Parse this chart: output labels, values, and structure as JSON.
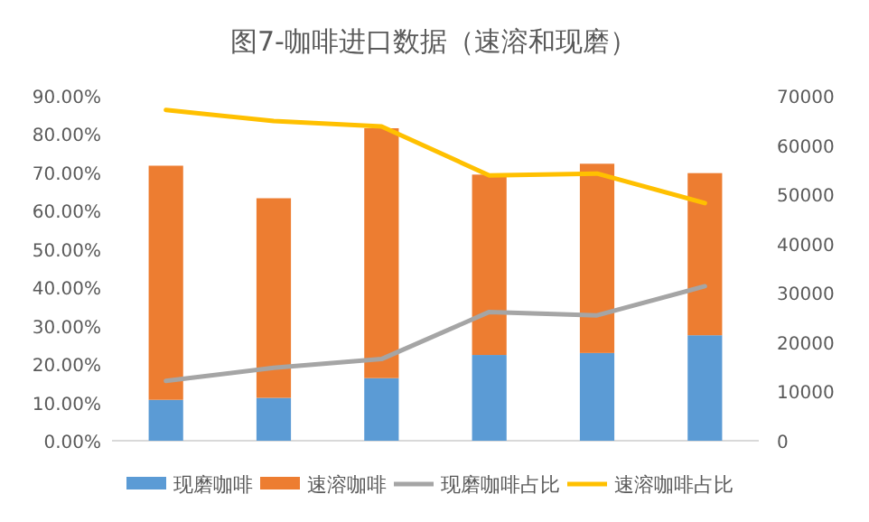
{
  "chart_data": {
    "type": "bar",
    "title": "图7-咖啡进口数据（速溶和现磨）",
    "categories": [
      null,
      null,
      null,
      null,
      null,
      null
    ],
    "stacked": true,
    "series": [
      {
        "name": "现磨咖啡",
        "color": "#5b9bd5",
        "axis": "y2",
        "values": [
          8300,
          8700,
          12700,
          17400,
          17800,
          21400
        ]
      },
      {
        "name": "速溶咖啡",
        "color": "#ed7d31",
        "axis": "y2",
        "values": [
          47500,
          40500,
          50700,
          36600,
          38400,
          32900
        ]
      },
      {
        "name": "现磨咖啡占比",
        "type": "line",
        "color": "#a5a5a5",
        "values": [
          15.6,
          19,
          21.3,
          33.6,
          32.7,
          40.3
        ]
      },
      {
        "name": "速溶咖啡占比",
        "type": "line",
        "color": "#ffc000",
        "values": [
          86.3,
          83.4,
          82,
          69.2,
          69.7,
          62
        ]
      }
    ],
    "ylim": [
      0,
      90
    ],
    "yticks": [
      {
        "value": 0,
        "label": "0.00%"
      },
      {
        "value": 10,
        "label": "10.00%"
      },
      {
        "value": 20,
        "label": "20.00%"
      },
      {
        "value": 30,
        "label": "30.00%"
      },
      {
        "value": 40,
        "label": "40.00%"
      },
      {
        "value": 50,
        "label": "50.00%"
      },
      {
        "value": 60,
        "label": "60.00%"
      },
      {
        "value": 70,
        "label": "70.00%"
      },
      {
        "value": 80,
        "label": "80.00%"
      },
      {
        "value": 90,
        "label": "90.00%"
      }
    ],
    "y2lim": [
      0,
      70000
    ],
    "y2ticks": [
      0,
      10000,
      20000,
      30000,
      40000,
      50000,
      60000,
      70000
    ],
    "legend": "bottom",
    "grid": false,
    "marker": "none"
  }
}
